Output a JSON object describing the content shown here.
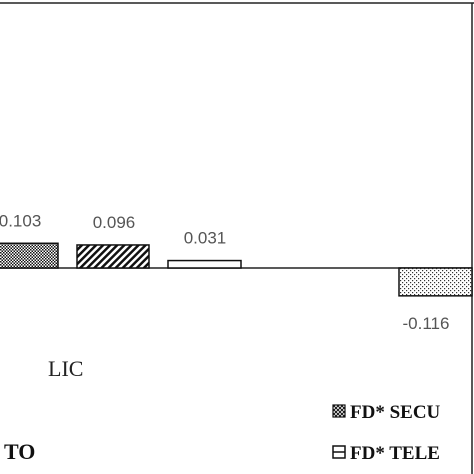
{
  "chart_data": {
    "type": "bar",
    "values": [
      0.103,
      0.096,
      0.031,
      -0.116
    ],
    "value_labels": [
      "0.103",
      "0.096",
      "0.031",
      "-0.116"
    ],
    "category_labels_visible": [
      "LIC",
      "TO"
    ],
    "legend": [
      {
        "label": "FD* SECU",
        "pattern": "crosshatch"
      },
      {
        "label": "FD* TELE",
        "pattern": "horizontal"
      }
    ],
    "grid": false
  }
}
